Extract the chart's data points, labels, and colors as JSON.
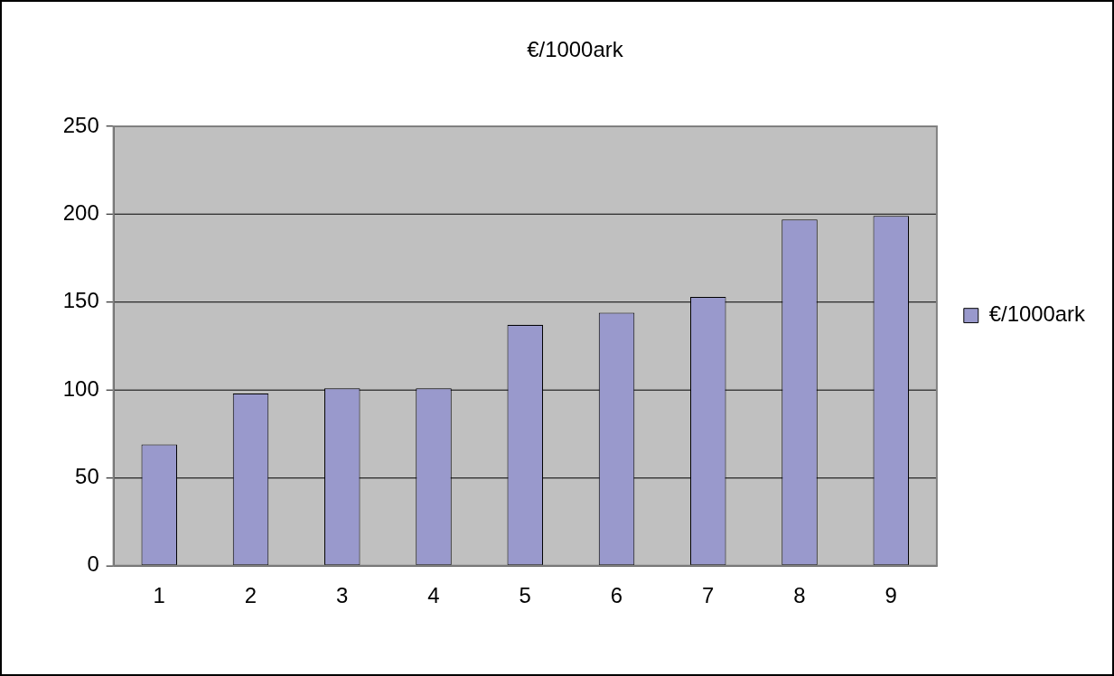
{
  "chart_data": {
    "type": "bar",
    "title": "€/1000ark",
    "categories": [
      "1",
      "2",
      "3",
      "4",
      "5",
      "6",
      "7",
      "8",
      "9"
    ],
    "series": [
      {
        "name": "€/1000ark",
        "color": "#9999cc",
        "values": [
          69,
          98,
          101,
          101,
          137,
          144,
          153,
          197,
          199
        ]
      }
    ],
    "ylim": [
      0,
      250
    ],
    "yticks": [
      0,
      50,
      100,
      150,
      200,
      250
    ],
    "grid": "y",
    "legend": "right"
  }
}
